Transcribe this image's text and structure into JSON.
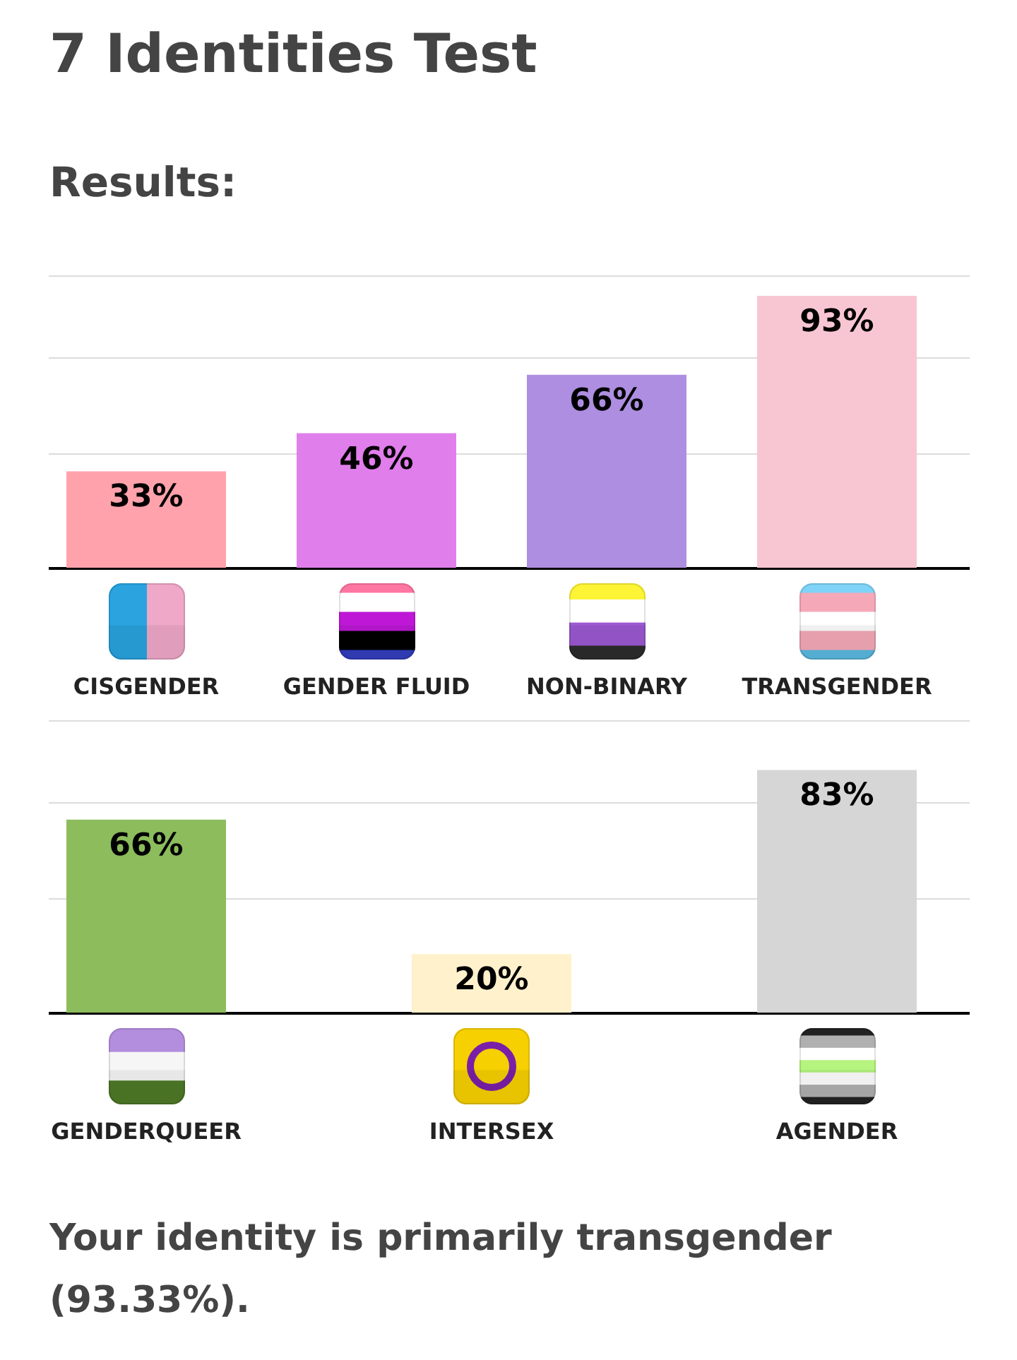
{
  "chart_data": [
    {
      "type": "bar",
      "title": "7 Identities Test",
      "subtitle": "Results:",
      "categories": [
        "CISGENDER",
        "GENDER FLUID",
        "NON-BINARY",
        "TRANSGENDER"
      ],
      "values": [
        33,
        46,
        66,
        93
      ],
      "value_labels": [
        "33%",
        "46%",
        "66%",
        "93%"
      ],
      "colors": [
        "#ffa2ac",
        "#e07eec",
        "#ae8ee0",
        "#f8c6d2"
      ],
      "ylim": [
        0,
        100
      ],
      "yticks": [
        {
          "value": 39,
          "label": null
        },
        {
          "value": 72,
          "label": null
        },
        {
          "value": 100,
          "label": null
        }
      ],
      "grid": "y",
      "tick_labels": "x"
    },
    {
      "type": "bar",
      "categories": [
        "GENDERQUEER",
        "INTERSEX",
        "AGENDER"
      ],
      "values": [
        66,
        20,
        83
      ],
      "value_labels": [
        "66%",
        "20%",
        "83%"
      ],
      "colors": [
        "#8cbc5c",
        "#fff1cc",
        "#d6d6d6"
      ],
      "ylim": [
        0,
        100
      ],
      "yticks": [
        {
          "value": 39,
          "label": null
        },
        {
          "value": 72,
          "label": null
        },
        {
          "value": 100,
          "label": null
        }
      ],
      "grid": "y",
      "tick_labels": "x",
      "annotations": [
        "Your identity is primarily transgender (93.33%)."
      ]
    }
  ]
}
